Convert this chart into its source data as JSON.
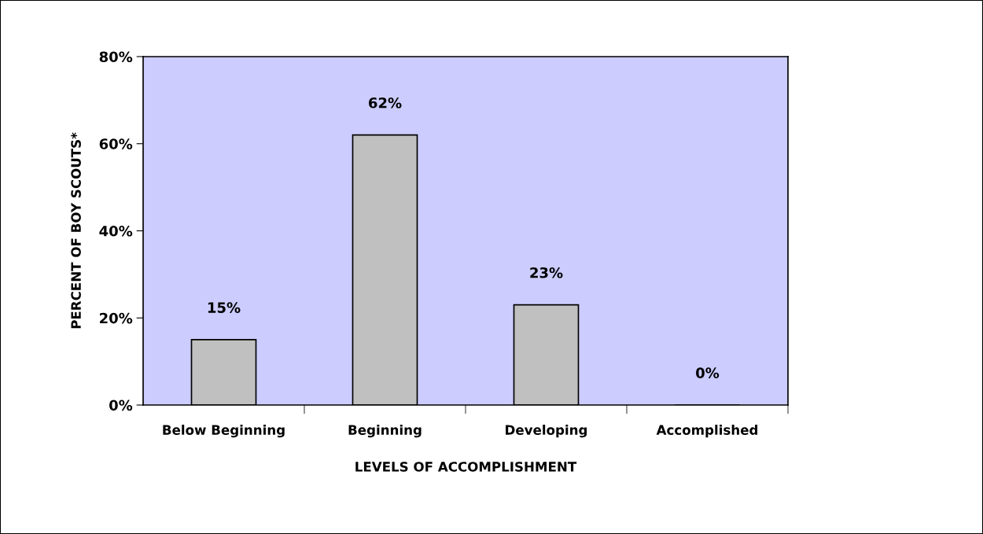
{
  "chart_data": {
    "type": "bar",
    "xlabel": "LEVELS OF ACCOMPLISHMENT",
    "ylabel": "PERCENT OF BOY SCOUTS*",
    "categories": [
      "Below Beginning",
      "Beginning",
      "Developing",
      "Accomplished"
    ],
    "values": [
      15,
      62,
      23,
      0
    ],
    "value_labels": [
      "15%",
      "62%",
      "23%",
      "0%"
    ],
    "color": "#c0c0c0",
    "ylim": [
      0,
      80
    ],
    "yticks": [
      {
        "value": 0,
        "label": "0%"
      },
      {
        "value": 20,
        "label": "20%"
      },
      {
        "value": 40,
        "label": "40%"
      },
      {
        "value": 60,
        "label": "60%"
      },
      {
        "value": 80,
        "label": "80%"
      }
    ],
    "grid": false,
    "legend": false
  }
}
